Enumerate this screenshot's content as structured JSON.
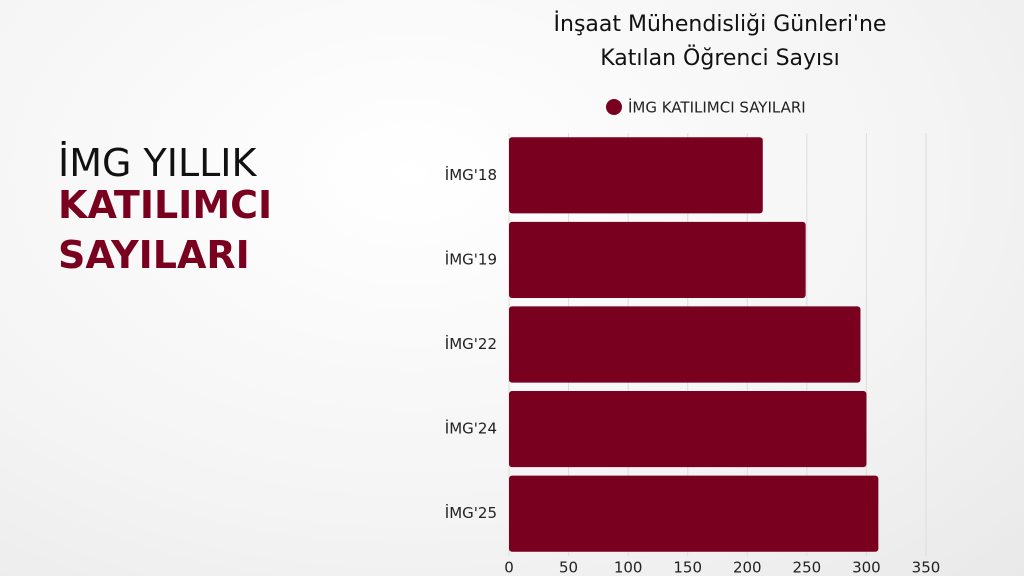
{
  "slide_heading": [
    "İMG YILLIK",
    "KATILIMCI",
    "SAYILARI"
  ],
  "chart_data": {
    "type": "hbar",
    "title": "İnşaat Mühendisliği Günleri'ne Katılan Öğrenci Sayısı",
    "categories": [
      "İMG'18",
      "İMG'19",
      "İMG'22",
      "İMG'24",
      "İMG'25"
    ],
    "series": [
      {
        "name": "İMG KATILIMCI SAYILARI",
        "color": "#7a0020",
        "values": [
          213,
          249,
          295,
          300,
          310
        ]
      }
    ],
    "xlim": [
      0,
      350
    ],
    "xticks": [
      0,
      50,
      100,
      150,
      200,
      250,
      300,
      350
    ],
    "grid": true,
    "legend": "top"
  }
}
